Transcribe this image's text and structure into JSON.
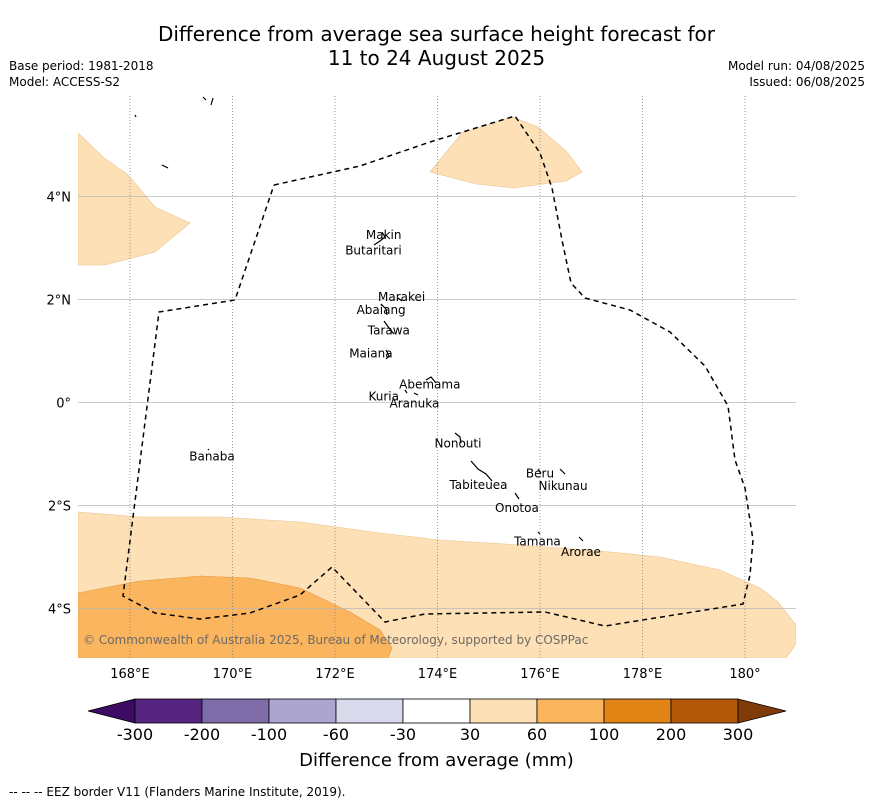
{
  "header": {
    "title_line1": "Difference from average sea surface height forecast for",
    "title_line2": "11 to 24 August 2025",
    "base_period": "Base period: 1981-2018",
    "model": "Model: ACCESS-S2",
    "model_run": "Model run: 04/08/2025",
    "issued": "Issued: 06/08/2025"
  },
  "map": {
    "lat_labels": [
      {
        "label": "4°N",
        "lat": 4
      },
      {
        "label": "2°N",
        "lat": 2
      },
      {
        "label": "0°",
        "lat": 0
      },
      {
        "label": "2°S",
        "lat": -2
      },
      {
        "label": "4°S",
        "lat": -4
      }
    ],
    "lon_labels": [
      {
        "label": "168°E",
        "lon": 168
      },
      {
        "label": "170°E",
        "lon": 170
      },
      {
        "label": "172°E",
        "lon": 172
      },
      {
        "label": "174°E",
        "lon": 174
      },
      {
        "label": "176°E",
        "lon": 176
      },
      {
        "label": "178°E",
        "lon": 178
      },
      {
        "label": "180°",
        "lon": 180
      }
    ],
    "places": [
      {
        "name": "Makin",
        "lon": 172.95,
        "lat": 3.25
      },
      {
        "name": "Butaritari",
        "lon": 172.75,
        "lat": 2.95
      },
      {
        "name": "Marakei",
        "lon": 173.3,
        "lat": 2.05
      },
      {
        "name": "Abaiang",
        "lon": 172.9,
        "lat": 1.8
      },
      {
        "name": "Tarawa",
        "lon": 173.05,
        "lat": 1.4
      },
      {
        "name": "Maiana",
        "lon": 172.7,
        "lat": 0.95
      },
      {
        "name": "Abemama",
        "lon": 173.85,
        "lat": 0.35
      },
      {
        "name": "Kuria",
        "lon": 172.95,
        "lat": 0.12
      },
      {
        "name": "Aranuka",
        "lon": 173.55,
        "lat": -0.02
      },
      {
        "name": "Nonouti",
        "lon": 174.4,
        "lat": -0.8
      },
      {
        "name": "Banaba",
        "lon": 169.6,
        "lat": -1.05
      },
      {
        "name": "Beru",
        "lon": 176.0,
        "lat": -1.38
      },
      {
        "name": "Tabiteuea",
        "lon": 174.8,
        "lat": -1.6
      },
      {
        "name": "Nikunau",
        "lon": 176.45,
        "lat": -1.62
      },
      {
        "name": "Onotoa",
        "lon": 175.55,
        "lat": -2.05
      },
      {
        "name": "Tamana",
        "lon": 175.95,
        "lat": -2.7
      },
      {
        "name": "Arorae",
        "lon": 176.8,
        "lat": -2.9
      }
    ],
    "copyright": "© Commonwealth of Australia 2025, Bureau of Meteorology, supported by COSPPac",
    "color_light_orange": "#fde0b6",
    "color_mid_orange": "#fab55e"
  },
  "colorbar": {
    "bins": [
      {
        "color": "#3d0b63"
      },
      {
        "color": "#54247f"
      },
      {
        "color": "#7d6ca8"
      },
      {
        "color": "#aba5d0"
      },
      {
        "color": "#d9d9ec"
      },
      {
        "color": "#ffffff"
      },
      {
        "color": "#fde0b6"
      },
      {
        "color": "#fab55e"
      },
      {
        "color": "#e28316"
      },
      {
        "color": "#b35806"
      },
      {
        "color": "#7f3b08"
      }
    ],
    "tick_labels": [
      "-300",
      "-200",
      "-100",
      "-60",
      "-30",
      "30",
      "60",
      "100",
      "200",
      "300"
    ],
    "title": "Difference from average (mm)"
  },
  "footer": {
    "text": "--  --  -- EEZ border V11 (Flanders Marine Institute, 2019)."
  }
}
